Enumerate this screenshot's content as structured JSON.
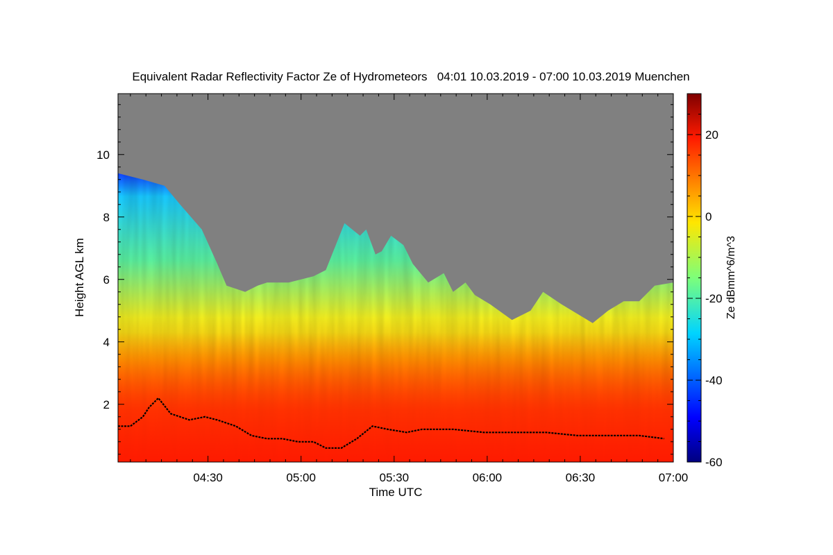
{
  "chart_data": {
    "type": "heatmap",
    "title": "Equivalent Radar Reflectivity Factor Ze of Hydrometeors   04:01 10.03.2019 - 07:00 10.03.2019 Muenchen",
    "xlabel": "Time UTC",
    "ylabel": "Height AGL km",
    "colorbar_label": "Ze dBmm^6/m^3",
    "xlim": [
      "04:01",
      "07:00"
    ],
    "x_tick_labels": [
      "04:30",
      "05:00",
      "05:30",
      "06:00",
      "06:30",
      "07:00"
    ],
    "ylim_km": [
      0.15,
      11.95
    ],
    "y_ticks": [
      2,
      4,
      6,
      8,
      10
    ],
    "colorbar_range_dbz": [
      -60,
      30
    ],
    "colorbar_ticks": [
      -60,
      -40,
      -20,
      0,
      20
    ],
    "colormap": "jet",
    "no_signal_color": "#808080",
    "cloud_top_km": {
      "x_minutes": [
        0,
        8,
        15,
        20,
        27,
        32,
        35,
        41,
        45,
        48,
        55,
        63,
        67,
        73,
        78,
        80,
        83,
        85,
        88,
        92,
        95,
        100,
        105,
        108,
        112,
        115,
        120,
        127,
        133,
        137,
        143,
        148,
        153,
        158,
        163,
        168,
        173,
        179
      ],
      "values": [
        9.4,
        9.2,
        9.0,
        8.4,
        7.6,
        6.5,
        5.8,
        5.6,
        5.8,
        5.9,
        5.9,
        6.1,
        6.3,
        7.8,
        7.4,
        7.6,
        6.8,
        6.9,
        7.4,
        7.1,
        6.5,
        5.9,
        6.2,
        5.6,
        5.9,
        5.5,
        5.2,
        4.7,
        5.0,
        5.6,
        5.2,
        4.9,
        4.6,
        5.0,
        5.3,
        5.3,
        5.8,
        5.9
      ]
    },
    "melting_layer_km": {
      "x_minutes": [
        0,
        4,
        8,
        10,
        13,
        17,
        23,
        28,
        32,
        38,
        43,
        48,
        53,
        58,
        63,
        67,
        72,
        77,
        82,
        87,
        93,
        98,
        108,
        118,
        128,
        138,
        148,
        158,
        168,
        176
      ],
      "values": [
        1.3,
        1.3,
        1.6,
        1.9,
        2.2,
        1.7,
        1.5,
        1.6,
        1.5,
        1.3,
        1.0,
        0.9,
        0.9,
        0.8,
        0.8,
        0.6,
        0.6,
        0.9,
        1.3,
        1.2,
        1.1,
        1.2,
        1.2,
        1.1,
        1.1,
        1.1,
        1.0,
        1.0,
        1.0,
        0.9
      ]
    }
  }
}
